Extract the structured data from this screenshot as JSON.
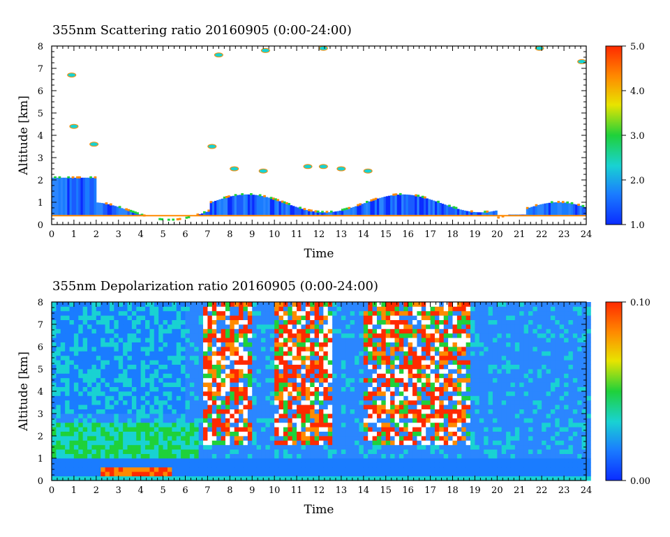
{
  "chart_data": [
    {
      "type": "heatmap",
      "title": "355nm Scattering ratio  20160905 (0:00-24:00)",
      "xlabel": "Time",
      "ylabel": "Altitude [km]",
      "xlim": [
        0,
        24
      ],
      "ylim": [
        0,
        8
      ],
      "x_ticks": [
        0,
        1,
        2,
        3,
        4,
        5,
        6,
        7,
        8,
        9,
        10,
        11,
        12,
        13,
        14,
        15,
        16,
        17,
        18,
        19,
        20,
        21,
        22,
        23,
        24
      ],
      "y_ticks": [
        0,
        1,
        2,
        3,
        4,
        5,
        6,
        7,
        8
      ],
      "colorbar": {
        "min": 1.0,
        "max": 5.0,
        "tick_labels": [
          "5.0",
          "4.0",
          "3.0",
          "2.0",
          "1.0"
        ],
        "tick_values": [
          5.0,
          4.0,
          3.0,
          2.0,
          1.0
        ]
      },
      "colorscale": [
        "#0a2cff",
        "#1a7cff",
        "#19d2d2",
        "#1fd13a",
        "#e8e400",
        "#ff8a00",
        "#ff2a00"
      ]
    },
    {
      "type": "heatmap",
      "title": "355nm Depolarization ratio  20160905 (0:00-24:00)",
      "xlabel": "Time",
      "ylabel": "Altitude [km]",
      "xlim": [
        0,
        24
      ],
      "ylim": [
        0,
        8
      ],
      "x_ticks": [
        0,
        1,
        2,
        3,
        4,
        5,
        6,
        7,
        8,
        9,
        10,
        11,
        12,
        13,
        14,
        15,
        16,
        17,
        18,
        19,
        20,
        21,
        22,
        23,
        24
      ],
      "y_ticks": [
        0,
        1,
        2,
        3,
        4,
        5,
        6,
        7,
        8
      ],
      "colorbar": {
        "min": 0.0,
        "max": 0.1,
        "tick_labels": [
          "0.10",
          "0.00"
        ],
        "tick_values": [
          0.1,
          0.0
        ]
      },
      "colorscale": [
        "#0a2cff",
        "#1a7cff",
        "#19d2d2",
        "#1fd13a",
        "#e8e400",
        "#ff8a00",
        "#ff2a00"
      ]
    }
  ]
}
